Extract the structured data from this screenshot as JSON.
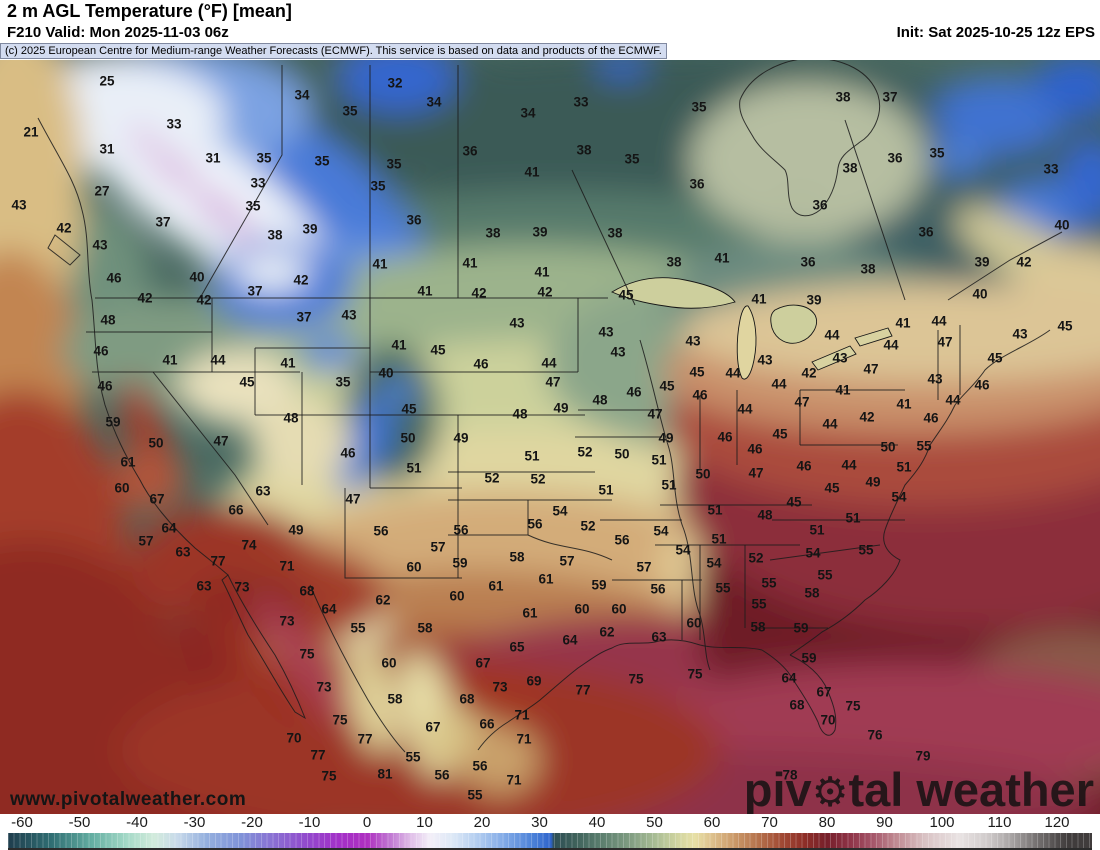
{
  "header": {
    "title": "2 m AGL Temperature (°F) [mean]",
    "valid": "F210 Valid: Mon 2025-11-03 06z",
    "init": "Init: Sat 2025-10-25 12z EPS",
    "attribution": "(c) 2025 European Centre for Medium-range Weather Forecasts (ECMWF). This service is based on data and products of the ECMWF."
  },
  "branding": {
    "website": "www.pivotalweather.com",
    "watermark_left": "piv",
    "watermark_gear": "⚙",
    "watermark_right": "tal weather"
  },
  "colorbar": {
    "unit": "°F",
    "min": -60,
    "max": 120,
    "ticks": [
      -60,
      -50,
      -40,
      -30,
      -20,
      -10,
      0,
      10,
      20,
      30,
      40,
      50,
      60,
      70,
      80,
      90,
      100,
      110,
      120
    ],
    "stops": [
      [
        -62,
        "#20404f"
      ],
      [
        -55,
        "#2f6d72"
      ],
      [
        -48,
        "#62ada1"
      ],
      [
        -42,
        "#a2d8c6"
      ],
      [
        -37,
        "#d2ebdc"
      ],
      [
        -33,
        "#c8daea"
      ],
      [
        -28,
        "#95b0de"
      ],
      [
        -22,
        "#8093d8"
      ],
      [
        -16,
        "#8a6ed2"
      ],
      [
        -10,
        "#9347cc"
      ],
      [
        -5,
        "#a331c8"
      ],
      [
        0,
        "#ae2fc0"
      ],
      [
        4,
        "#c077d2"
      ],
      [
        8,
        "#e2c4ea"
      ],
      [
        11,
        "#f3eff8"
      ],
      [
        15,
        "#dce8f6"
      ],
      [
        19,
        "#b4cef0"
      ],
      [
        24,
        "#80a9e6"
      ],
      [
        29,
        "#4a80d8"
      ],
      [
        32,
        "#2f64cc"
      ],
      [
        32.5,
        "#2e4f56"
      ],
      [
        36,
        "#3d605a"
      ],
      [
        40,
        "#567a6b"
      ],
      [
        45,
        "#7a987f"
      ],
      [
        50,
        "#a7bc94"
      ],
      [
        54,
        "#d0d4a0"
      ],
      [
        57,
        "#e7e0a6"
      ],
      [
        60,
        "#ddc18d"
      ],
      [
        64,
        "#ca9868"
      ],
      [
        68,
        "#b5724c"
      ],
      [
        72,
        "#a24b35"
      ],
      [
        76,
        "#8f2f28"
      ],
      [
        80,
        "#761f2a"
      ],
      [
        84,
        "#8f3347"
      ],
      [
        88,
        "#a5566a"
      ],
      [
        92,
        "#c08a92"
      ],
      [
        97,
        "#d9c2c4"
      ],
      [
        103,
        "#e9e3e3"
      ],
      [
        108,
        "#cfcaca"
      ],
      [
        112,
        "#a8a4a4"
      ],
      [
        116,
        "#7a7676"
      ],
      [
        120,
        "#514d4d"
      ],
      [
        122,
        "#403c3c"
      ]
    ]
  },
  "map": {
    "labels": [
      [
        25,
        107,
        81
      ],
      [
        34,
        302,
        95
      ],
      [
        35,
        350,
        111
      ],
      [
        33,
        174,
        124
      ],
      [
        21,
        31,
        132
      ],
      [
        31,
        107,
        149
      ],
      [
        31,
        213,
        158
      ],
      [
        35,
        264,
        158
      ],
      [
        35,
        322,
        161
      ],
      [
        27,
        102,
        191
      ],
      [
        33,
        258,
        183
      ],
      [
        35,
        253,
        206
      ],
      [
        43,
        19,
        205
      ],
      [
        42,
        64,
        228
      ],
      [
        37,
        163,
        222
      ],
      [
        38,
        275,
        235
      ],
      [
        39,
        310,
        229
      ],
      [
        43,
        100,
        245
      ],
      [
        46,
        114,
        278
      ],
      [
        40,
        197,
        277
      ],
      [
        42,
        301,
        280
      ],
      [
        37,
        255,
        291
      ],
      [
        42,
        145,
        298
      ],
      [
        42,
        204,
        300
      ],
      [
        32,
        395,
        83
      ],
      [
        34,
        434,
        102
      ],
      [
        33,
        581,
        102
      ],
      [
        34,
        528,
        113
      ],
      [
        35,
        699,
        107
      ],
      [
        36,
        470,
        151
      ],
      [
        38,
        584,
        150
      ],
      [
        35,
        632,
        159
      ],
      [
        35,
        394,
        164
      ],
      [
        41,
        532,
        172
      ],
      [
        35,
        378,
        186
      ],
      [
        36,
        697,
        184
      ],
      [
        36,
        414,
        220
      ],
      [
        38,
        493,
        233
      ],
      [
        39,
        540,
        232
      ],
      [
        38,
        615,
        233
      ],
      [
        38,
        674,
        262
      ],
      [
        41,
        722,
        258
      ],
      [
        41,
        380,
        264
      ],
      [
        41,
        470,
        263
      ],
      [
        41,
        542,
        272
      ],
      [
        41,
        425,
        291
      ],
      [
        42,
        479,
        293
      ],
      [
        42,
        545,
        292
      ],
      [
        45,
        626,
        295
      ],
      [
        38,
        843,
        97
      ],
      [
        37,
        890,
        97
      ],
      [
        35,
        937,
        153
      ],
      [
        36,
        895,
        158
      ],
      [
        33,
        1051,
        169
      ],
      [
        38,
        850,
        168
      ],
      [
        36,
        820,
        205
      ],
      [
        36,
        926,
        232
      ],
      [
        40,
        1062,
        225
      ],
      [
        36,
        808,
        262
      ],
      [
        38,
        868,
        269
      ],
      [
        39,
        982,
        262
      ],
      [
        42,
        1024,
        262
      ],
      [
        40,
        980,
        294
      ],
      [
        41,
        759,
        299
      ],
      [
        39,
        814,
        300
      ],
      [
        48,
        108,
        320
      ],
      [
        37,
        304,
        317
      ],
      [
        43,
        349,
        315
      ],
      [
        46,
        101,
        351
      ],
      [
        41,
        170,
        360
      ],
      [
        44,
        218,
        360
      ],
      [
        41,
        288,
        363
      ],
      [
        46,
        105,
        386
      ],
      [
        45,
        247,
        382
      ],
      [
        35,
        343,
        382
      ],
      [
        59,
        113,
        422
      ],
      [
        48,
        291,
        418
      ],
      [
        50,
        156,
        443
      ],
      [
        47,
        221,
        441
      ],
      [
        46,
        348,
        453
      ],
      [
        61,
        128,
        462
      ],
      [
        60,
        122,
        488
      ],
      [
        63,
        263,
        491
      ],
      [
        67,
        157,
        499
      ],
      [
        47,
        353,
        499
      ],
      [
        66,
        236,
        510
      ],
      [
        64,
        169,
        528
      ],
      [
        49,
        296,
        530
      ],
      [
        57,
        146,
        541
      ],
      [
        74,
        249,
        545
      ],
      [
        63,
        183,
        552
      ],
      [
        43,
        517,
        323
      ],
      [
        43,
        606,
        332
      ],
      [
        41,
        399,
        345
      ],
      [
        45,
        438,
        350
      ],
      [
        43,
        618,
        352
      ],
      [
        43,
        693,
        341
      ],
      [
        46,
        481,
        364
      ],
      [
        44,
        549,
        363
      ],
      [
        45,
        697,
        372
      ],
      [
        44,
        733,
        373
      ],
      [
        40,
        386,
        373
      ],
      [
        47,
        553,
        382
      ],
      [
        45,
        667,
        386
      ],
      [
        46,
        634,
        392
      ],
      [
        46,
        700,
        395
      ],
      [
        45,
        409,
        409
      ],
      [
        48,
        600,
        400
      ],
      [
        49,
        561,
        408
      ],
      [
        47,
        655,
        414
      ],
      [
        48,
        520,
        414
      ],
      [
        50,
        408,
        438
      ],
      [
        49,
        461,
        438
      ],
      [
        49,
        666,
        438
      ],
      [
        46,
        725,
        437
      ],
      [
        51,
        532,
        456
      ],
      [
        52,
        585,
        452
      ],
      [
        50,
        622,
        454
      ],
      [
        51,
        659,
        460
      ],
      [
        51,
        414,
        468
      ],
      [
        52,
        492,
        478
      ],
      [
        52,
        538,
        479
      ],
      [
        50,
        703,
        474
      ],
      [
        51,
        606,
        490
      ],
      [
        51,
        669,
        485
      ],
      [
        54,
        560,
        511
      ],
      [
        51,
        715,
        510
      ],
      [
        56,
        535,
        524
      ],
      [
        52,
        588,
        526
      ],
      [
        56,
        461,
        530
      ],
      [
        56,
        622,
        540
      ],
      [
        54,
        661,
        531
      ],
      [
        51,
        719,
        539
      ],
      [
        54,
        683,
        550
      ],
      [
        57,
        438,
        547
      ],
      [
        58,
        517,
        557
      ],
      [
        56,
        381,
        531
      ],
      [
        41,
        903,
        323
      ],
      [
        44,
        939,
        321
      ],
      [
        45,
        1065,
        326
      ],
      [
        44,
        832,
        335
      ],
      [
        43,
        1020,
        334
      ],
      [
        47,
        945,
        342
      ],
      [
        44,
        891,
        345
      ],
      [
        43,
        840,
        358
      ],
      [
        43,
        765,
        360
      ],
      [
        45,
        995,
        358
      ],
      [
        47,
        871,
        369
      ],
      [
        42,
        809,
        373
      ],
      [
        44,
        779,
        384
      ],
      [
        43,
        935,
        379
      ],
      [
        46,
        982,
        385
      ],
      [
        47,
        802,
        402
      ],
      [
        41,
        843,
        390
      ],
      [
        44,
        953,
        400
      ],
      [
        44,
        745,
        409
      ],
      [
        41,
        904,
        404
      ],
      [
        42,
        867,
        417
      ],
      [
        44,
        830,
        424
      ],
      [
        46,
        931,
        418
      ],
      [
        45,
        780,
        434
      ],
      [
        46,
        755,
        449
      ],
      [
        50,
        888,
        447
      ],
      [
        55,
        924,
        446
      ],
      [
        47,
        756,
        473
      ],
      [
        46,
        804,
        466
      ],
      [
        44,
        849,
        465
      ],
      [
        51,
        904,
        467
      ],
      [
        49,
        873,
        482
      ],
      [
        45,
        832,
        488
      ],
      [
        54,
        899,
        497
      ],
      [
        45,
        794,
        502
      ],
      [
        48,
        765,
        515
      ],
      [
        51,
        853,
        518
      ],
      [
        51,
        817,
        530
      ],
      [
        54,
        813,
        553
      ],
      [
        55,
        866,
        550
      ],
      [
        52,
        756,
        558
      ],
      [
        77,
        218,
        561
      ],
      [
        71,
        287,
        566
      ],
      [
        63,
        204,
        586
      ],
      [
        73,
        242,
        587
      ],
      [
        68,
        307,
        591
      ],
      [
        64,
        329,
        609
      ],
      [
        55,
        358,
        628
      ],
      [
        73,
        287,
        621
      ],
      [
        75,
        307,
        654
      ],
      [
        73,
        324,
        687
      ],
      [
        75,
        340,
        720
      ],
      [
        70,
        294,
        738
      ],
      [
        77,
        365,
        739
      ],
      [
        77,
        318,
        755
      ],
      [
        75,
        329,
        776
      ],
      [
        60,
        414,
        567
      ],
      [
        59,
        460,
        563
      ],
      [
        57,
        567,
        561
      ],
      [
        57,
        644,
        567
      ],
      [
        54,
        714,
        563
      ],
      [
        61,
        546,
        579
      ],
      [
        61,
        496,
        586
      ],
      [
        59,
        599,
        585
      ],
      [
        55,
        723,
        588
      ],
      [
        56,
        658,
        589
      ],
      [
        62,
        383,
        600
      ],
      [
        60,
        457,
        596
      ],
      [
        61,
        530,
        613
      ],
      [
        60,
        582,
        609
      ],
      [
        60,
        619,
        609
      ],
      [
        60,
        694,
        623
      ],
      [
        58,
        425,
        628
      ],
      [
        62,
        607,
        632
      ],
      [
        63,
        659,
        637
      ],
      [
        64,
        570,
        640
      ],
      [
        65,
        517,
        647
      ],
      [
        60,
        389,
        663
      ],
      [
        67,
        483,
        663
      ],
      [
        75,
        636,
        679
      ],
      [
        75,
        695,
        674
      ],
      [
        69,
        534,
        681
      ],
      [
        77,
        583,
        690
      ],
      [
        73,
        500,
        687
      ],
      [
        58,
        395,
        699
      ],
      [
        68,
        467,
        699
      ],
      [
        71,
        522,
        715
      ],
      [
        67,
        433,
        727
      ],
      [
        66,
        487,
        724
      ],
      [
        71,
        524,
        739
      ],
      [
        55,
        413,
        757
      ],
      [
        56,
        480,
        766
      ],
      [
        56,
        442,
        775
      ],
      [
        81,
        385,
        774
      ],
      [
        71,
        514,
        780
      ],
      [
        55,
        475,
        795
      ],
      [
        55,
        825,
        575
      ],
      [
        55,
        769,
        583
      ],
      [
        58,
        812,
        593
      ],
      [
        55,
        759,
        604
      ],
      [
        58,
        758,
        627
      ],
      [
        59,
        801,
        628
      ],
      [
        59,
        809,
        658
      ],
      [
        64,
        789,
        678
      ],
      [
        67,
        824,
        692
      ],
      [
        68,
        797,
        705
      ],
      [
        70,
        828,
        720
      ],
      [
        75,
        853,
        706
      ],
      [
        76,
        875,
        735
      ],
      [
        79,
        923,
        756
      ],
      [
        78,
        790,
        775
      ]
    ]
  }
}
